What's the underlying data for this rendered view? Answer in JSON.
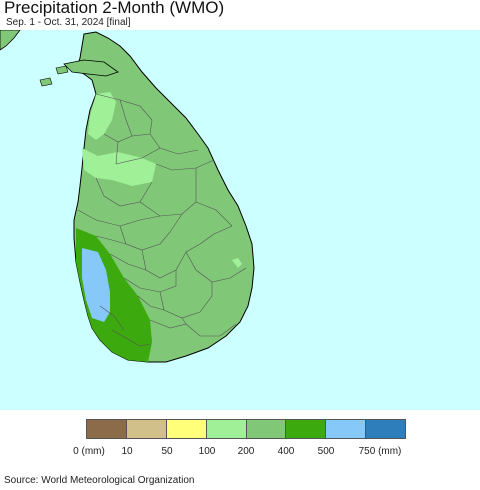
{
  "title": "Precipitation 2-Month (WMO)",
  "subtitle": "Sep. 1 - Oct. 31, 2024 [final]",
  "source": "Source: World Meteorological Organization",
  "map": {
    "colors": {
      "ocean": "#ccffff",
      "land_base": "#80c878",
      "light_green": "#a0f098",
      "dark_green": "#3caa0e",
      "blue": "#86c8f8",
      "border": "#555555",
      "coast": "#000000"
    }
  },
  "legend": {
    "colors": [
      "#8b6b4a",
      "#d2c08a",
      "#ffff7a",
      "#a0f098",
      "#80c878",
      "#3caa0e",
      "#86c8f8",
      "#2f7ebc"
    ],
    "labels": [
      "0 (mm)",
      "10",
      "50",
      "100",
      "200",
      "400",
      "500",
      "750 (mm)"
    ]
  }
}
